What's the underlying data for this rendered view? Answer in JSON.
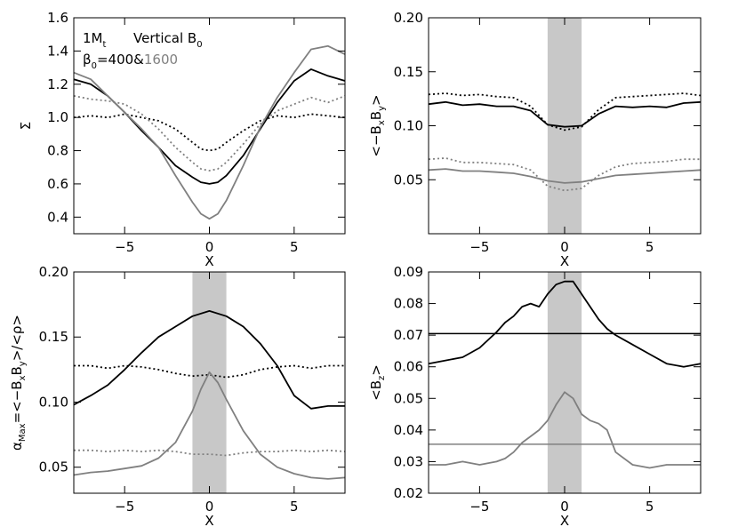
{
  "figure": {
    "annotation": {
      "mass": "1M",
      "mass_sub": "t",
      "field": "Vertical B",
      "field_sub": "0",
      "beta_sym": "β",
      "beta_sub": "0",
      "beta_eq": "=400&",
      "beta_alt": "1600",
      "alt_color": "#808080"
    }
  },
  "chart_data": [
    {
      "type": "line",
      "panel": "top-left",
      "xlabel": "X",
      "ylabel": "Σ",
      "xlim": [
        -8,
        8
      ],
      "ylim": [
        0.3,
        1.6
      ],
      "xticks": [
        -5,
        0,
        5
      ],
      "xtick_labels": [
        "−5",
        "0",
        "5"
      ],
      "yticks": [
        0.4,
        0.6,
        0.8,
        1.0,
        1.2,
        1.4,
        1.6
      ],
      "ytick_labels": [
        "0.4",
        "0.6",
        "0.8",
        "1.0",
        "1.2",
        "1.4",
        "1.6"
      ],
      "shaded_x": null,
      "series": [
        {
          "color": "#000000",
          "dash": "dotted",
          "x": [
            -8,
            -7,
            -6,
            -5,
            -4,
            -3,
            -2,
            -1,
            -0.5,
            0,
            0.5,
            1,
            2,
            3,
            4,
            5,
            6,
            7,
            8
          ],
          "y": [
            1.0,
            1.01,
            1.0,
            1.02,
            1.0,
            0.98,
            0.93,
            0.85,
            0.81,
            0.8,
            0.81,
            0.85,
            0.92,
            0.98,
            1.01,
            1.0,
            1.02,
            1.01,
            1.0
          ]
        },
        {
          "color": "#808080",
          "dash": "dotted",
          "x": [
            -8,
            -7,
            -6,
            -5,
            -4,
            -3,
            -2,
            -1,
            -0.5,
            0,
            0.5,
            1,
            2,
            3,
            4,
            5,
            6,
            7,
            8
          ],
          "y": [
            1.13,
            1.11,
            1.1,
            1.08,
            1.02,
            0.93,
            0.82,
            0.73,
            0.69,
            0.68,
            0.69,
            0.73,
            0.84,
            0.96,
            1.04,
            1.08,
            1.12,
            1.09,
            1.13
          ]
        },
        {
          "color": "#000000",
          "dash": "solid",
          "x": [
            -8,
            -7,
            -6,
            -5,
            -4,
            -3,
            -2,
            -1,
            -0.5,
            0,
            0.5,
            1,
            2,
            3,
            4,
            5,
            6,
            7,
            8
          ],
          "y": [
            1.23,
            1.2,
            1.13,
            1.03,
            0.92,
            0.82,
            0.71,
            0.64,
            0.61,
            0.6,
            0.61,
            0.65,
            0.77,
            0.93,
            1.09,
            1.22,
            1.29,
            1.25,
            1.22
          ]
        },
        {
          "color": "#808080",
          "dash": "solid",
          "x": [
            -8,
            -7,
            -6,
            -5,
            -4,
            -3,
            -2,
            -1,
            -0.5,
            0,
            0.5,
            1,
            2,
            3,
            4,
            5,
            6,
            7,
            8
          ],
          "y": [
            1.27,
            1.23,
            1.13,
            1.03,
            0.93,
            0.82,
            0.65,
            0.49,
            0.42,
            0.39,
            0.42,
            0.5,
            0.71,
            0.94,
            1.12,
            1.27,
            1.41,
            1.43,
            1.38
          ]
        }
      ]
    },
    {
      "type": "line",
      "panel": "top-right",
      "xlabel": "X",
      "ylabel": "<−BxBy>",
      "ylabel_parts": [
        "<−B",
        "x",
        "B",
        "y",
        ">"
      ],
      "xlim": [
        -8,
        8
      ],
      "ylim": [
        0.0,
        0.2
      ],
      "xticks": [
        -5,
        0,
        5
      ],
      "xtick_labels": [
        "−5",
        "0",
        "5"
      ],
      "yticks": [
        0.05,
        0.1,
        0.15,
        0.2
      ],
      "ytick_labels": [
        "0.05",
        "0.10",
        "0.15",
        "0.20"
      ],
      "shaded_x": [
        -1,
        1
      ],
      "series": [
        {
          "color": "#000000",
          "dash": "dotted",
          "x": [
            -8,
            -7,
            -6,
            -5,
            -4,
            -3,
            -2,
            -1,
            0,
            1,
            2,
            3,
            4,
            5,
            6,
            7,
            8
          ],
          "y": [
            0.129,
            0.13,
            0.128,
            0.129,
            0.127,
            0.126,
            0.118,
            0.101,
            0.096,
            0.099,
            0.115,
            0.126,
            0.127,
            0.128,
            0.129,
            0.13,
            0.128
          ]
        },
        {
          "color": "#000000",
          "dash": "solid",
          "x": [
            -8,
            -7,
            -6,
            -5,
            -4,
            -3,
            -2,
            -1,
            0,
            1,
            2,
            3,
            4,
            5,
            6,
            7,
            8
          ],
          "y": [
            0.12,
            0.122,
            0.119,
            0.12,
            0.118,
            0.118,
            0.114,
            0.101,
            0.099,
            0.1,
            0.111,
            0.118,
            0.117,
            0.118,
            0.117,
            0.121,
            0.122
          ]
        },
        {
          "color": "#808080",
          "dash": "dotted",
          "x": [
            -8,
            -7,
            -6,
            -5,
            -4,
            -3,
            -2,
            -1,
            0,
            1,
            2,
            3,
            4,
            5,
            6,
            7,
            8
          ],
          "y": [
            0.069,
            0.07,
            0.066,
            0.066,
            0.065,
            0.064,
            0.059,
            0.044,
            0.04,
            0.042,
            0.054,
            0.062,
            0.065,
            0.066,
            0.067,
            0.069,
            0.069
          ]
        },
        {
          "color": "#808080",
          "dash": "solid",
          "x": [
            -8,
            -7,
            -6,
            -5,
            -4,
            -3,
            -2,
            -1,
            0,
            1,
            2,
            3,
            4,
            5,
            6,
            7,
            8
          ],
          "y": [
            0.059,
            0.06,
            0.058,
            0.058,
            0.057,
            0.056,
            0.053,
            0.049,
            0.047,
            0.048,
            0.051,
            0.054,
            0.055,
            0.056,
            0.057,
            0.058,
            0.059
          ]
        }
      ]
    },
    {
      "type": "line",
      "panel": "bottom-left",
      "xlabel": "X",
      "ylabel": "αMax=<−BxBy>/<ρ>",
      "ylabel_parts": [
        "α",
        "Max",
        "=<−B",
        "x",
        "B",
        "y",
        ">/<ρ>"
      ],
      "xlim": [
        -8,
        8
      ],
      "ylim": [
        0.03,
        0.2
      ],
      "xticks": [
        -5,
        0,
        5
      ],
      "xtick_labels": [
        "−5",
        "0",
        "5"
      ],
      "yticks": [
        0.05,
        0.1,
        0.15,
        0.2
      ],
      "ytick_labels": [
        "0.05",
        "0.10",
        "0.15",
        "0.20"
      ],
      "shaded_x": [
        -1,
        1
      ],
      "series": [
        {
          "color": "#000000",
          "dash": "solid",
          "x": [
            -8,
            -7,
            -6,
            -5,
            -4,
            -3,
            -2,
            -1,
            0,
            1,
            2,
            3,
            4,
            5,
            6,
            7,
            8
          ],
          "y": [
            0.098,
            0.105,
            0.113,
            0.125,
            0.138,
            0.15,
            0.158,
            0.166,
            0.17,
            0.166,
            0.158,
            0.145,
            0.128,
            0.105,
            0.095,
            0.097,
            0.097
          ]
        },
        {
          "color": "#000000",
          "dash": "dotted",
          "x": [
            -8,
            -7,
            -6,
            -5,
            -4,
            -3,
            -2,
            -1,
            0,
            1,
            2,
            3,
            4,
            5,
            6,
            7,
            8
          ],
          "y": [
            0.128,
            0.128,
            0.126,
            0.128,
            0.127,
            0.125,
            0.122,
            0.12,
            0.121,
            0.119,
            0.121,
            0.125,
            0.127,
            0.128,
            0.126,
            0.128,
            0.128
          ]
        },
        {
          "color": "#808080",
          "dash": "solid",
          "x": [
            -8,
            -7,
            -6,
            -5,
            -4,
            -3,
            -2,
            -1,
            -0.5,
            0,
            0.5,
            1,
            2,
            3,
            4,
            5,
            6,
            7,
            8
          ],
          "y": [
            0.044,
            0.046,
            0.047,
            0.049,
            0.051,
            0.057,
            0.069,
            0.093,
            0.11,
            0.123,
            0.115,
            0.102,
            0.078,
            0.06,
            0.05,
            0.045,
            0.042,
            0.041,
            0.042
          ]
        },
        {
          "color": "#808080",
          "dash": "dotted",
          "x": [
            -8,
            -7,
            -6,
            -5,
            -4,
            -3,
            -2,
            -1,
            0,
            1,
            2,
            3,
            4,
            5,
            6,
            7,
            8
          ],
          "y": [
            0.063,
            0.063,
            0.062,
            0.063,
            0.062,
            0.063,
            0.062,
            0.06,
            0.06,
            0.059,
            0.061,
            0.062,
            0.062,
            0.063,
            0.062,
            0.063,
            0.062
          ]
        }
      ]
    },
    {
      "type": "line",
      "panel": "bottom-right",
      "xlabel": "X",
      "ylabel": "<Bz>",
      "ylabel_parts": [
        "<B",
        "z",
        ">"
      ],
      "xlim": [
        -8,
        8
      ],
      "ylim": [
        0.02,
        0.09
      ],
      "xticks": [
        -5,
        0,
        5
      ],
      "xtick_labels": [
        "−5",
        "0",
        "5"
      ],
      "yticks": [
        0.02,
        0.03,
        0.04,
        0.05,
        0.06,
        0.07,
        0.08,
        0.09
      ],
      "ytick_labels": [
        "0.02",
        "0.03",
        "0.04",
        "0.05",
        "0.06",
        "0.07",
        "0.08",
        "0.09"
      ],
      "shaded_x": [
        -1,
        1
      ],
      "hlines": [
        {
          "y": 0.0705,
          "color": "#000000"
        },
        {
          "y": 0.0355,
          "color": "#808080"
        }
      ],
      "series": [
        {
          "color": "#000000",
          "dash": "solid",
          "x": [
            -8,
            -7,
            -6,
            -5,
            -4,
            -3.5,
            -3,
            -2.5,
            -2,
            -1.5,
            -1,
            -0.5,
            0,
            0.5,
            1,
            1.5,
            2,
            2.5,
            3,
            4,
            5,
            6,
            7,
            8
          ],
          "y": [
            0.061,
            0.062,
            0.063,
            0.066,
            0.071,
            0.074,
            0.076,
            0.079,
            0.08,
            0.079,
            0.083,
            0.086,
            0.087,
            0.087,
            0.083,
            0.079,
            0.075,
            0.072,
            0.07,
            0.067,
            0.064,
            0.061,
            0.06,
            0.061
          ]
        },
        {
          "color": "#808080",
          "dash": "solid",
          "x": [
            -8,
            -7,
            -6,
            -5,
            -4,
            -3.5,
            -3,
            -2.5,
            -2,
            -1.5,
            -1,
            -0.5,
            0,
            0.5,
            1,
            1.5,
            2,
            2.5,
            3,
            4,
            5,
            6,
            7,
            8
          ],
          "y": [
            0.029,
            0.029,
            0.03,
            0.029,
            0.03,
            0.031,
            0.033,
            0.036,
            0.038,
            0.04,
            0.043,
            0.048,
            0.052,
            0.05,
            0.045,
            0.043,
            0.042,
            0.04,
            0.033,
            0.029,
            0.028,
            0.029,
            0.029,
            0.029
          ]
        }
      ]
    }
  ]
}
